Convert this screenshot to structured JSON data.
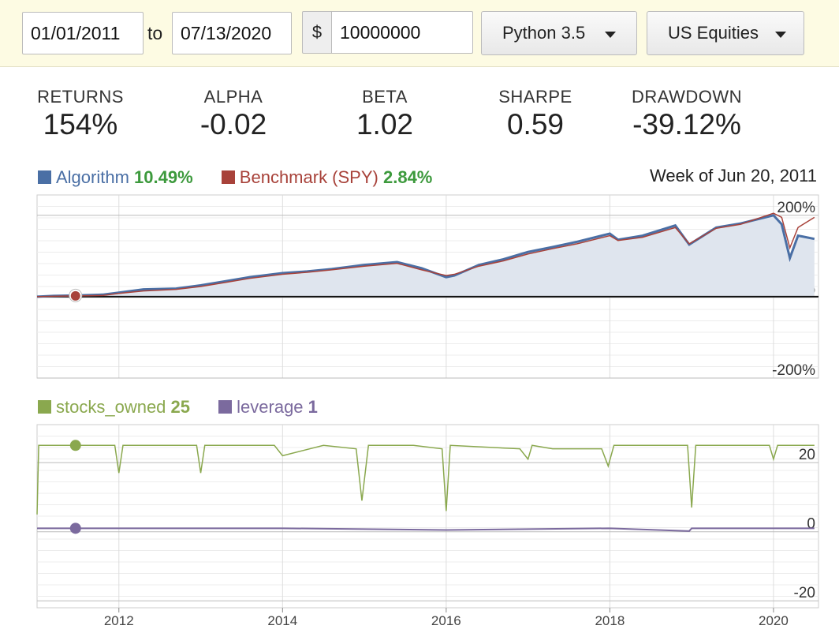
{
  "controls": {
    "start_date": "01/01/2011",
    "to_label": "to",
    "end_date": "07/13/2020",
    "currency_symbol": "$",
    "capital": "10000000",
    "language": "Python 3.5",
    "universe": "US Equities"
  },
  "stats": [
    {
      "label": "RETURNS",
      "value": "154%"
    },
    {
      "label": "ALPHA",
      "value": "-0.02"
    },
    {
      "label": "BETA",
      "value": "1.02"
    },
    {
      "label": "SHARPE",
      "value": "0.59"
    },
    {
      "label": "DRAWDOWN",
      "value": "-39.12%"
    }
  ],
  "returns_legend": {
    "algorithm_label": "Algorithm",
    "algorithm_value": "10.49%",
    "benchmark_label": "Benchmark (SPY)",
    "benchmark_value": "2.84%",
    "hover_date": "Week of Jun 20, 2011"
  },
  "colors": {
    "algorithm": "#4a6fa5",
    "benchmark": "#a8423a",
    "stocks_owned": "#8aa84e",
    "leverage": "#7b6a9e",
    "value_green": "#3d9a3d"
  },
  "custom_legend": {
    "stocks_label": "stocks_owned",
    "stocks_value": "25",
    "leverage_label": "leverage",
    "leverage_value": "1"
  },
  "chart_data": [
    {
      "type": "area",
      "ylim": [
        -200,
        250
      ],
      "y_tick_labels": [
        "200%",
        "0%",
        "-200%"
      ],
      "y_ticks": [
        200,
        0,
        -200
      ],
      "series": [
        {
          "name": "Algorithm",
          "x": [
            2011.0,
            2011.2,
            2011.47,
            2011.8,
            2012.0,
            2012.3,
            2012.7,
            2013.0,
            2013.3,
            2013.6,
            2014.0,
            2014.3,
            2014.6,
            2015.0,
            2015.4,
            2015.7,
            2016.0,
            2016.1,
            2016.4,
            2016.7,
            2017.0,
            2017.3,
            2017.6,
            2018.0,
            2018.1,
            2018.4,
            2018.8,
            2018.97,
            2019.3,
            2019.6,
            2020.0,
            2020.1,
            2020.2,
            2020.3,
            2020.5
          ],
          "values": [
            0,
            2,
            3,
            5,
            10,
            18,
            20,
            28,
            38,
            48,
            58,
            62,
            68,
            78,
            85,
            70,
            48,
            52,
            78,
            92,
            110,
            122,
            135,
            155,
            140,
            150,
            175,
            128,
            170,
            180,
            200,
            178,
            95,
            150,
            142
          ]
        },
        {
          "name": "Benchmark (SPY)",
          "x": [
            2011.0,
            2011.2,
            2011.47,
            2011.8,
            2012.0,
            2012.3,
            2012.7,
            2013.0,
            2013.3,
            2013.6,
            2014.0,
            2014.3,
            2014.6,
            2015.0,
            2015.4,
            2015.7,
            2016.0,
            2016.1,
            2016.4,
            2016.7,
            2017.0,
            2017.3,
            2017.6,
            2018.0,
            2018.1,
            2018.4,
            2018.8,
            2018.97,
            2019.3,
            2019.6,
            2020.0,
            2020.1,
            2020.2,
            2020.3,
            2020.5
          ],
          "values": [
            0,
            1,
            2,
            3,
            8,
            14,
            18,
            25,
            35,
            45,
            55,
            60,
            66,
            75,
            82,
            66,
            52,
            55,
            75,
            88,
            105,
            118,
            130,
            150,
            138,
            146,
            170,
            130,
            168,
            178,
            205,
            195,
            120,
            170,
            195
          ]
        }
      ]
    },
    {
      "type": "line",
      "ylim": [
        -22,
        31
      ],
      "y_tick_labels": [
        "20",
        "0",
        "-20"
      ],
      "y_ticks": [
        20,
        0,
        -20
      ],
      "x_tick_labels": [
        "2012",
        "2014",
        "2016",
        "2018",
        "2020"
      ],
      "x_ticks": [
        2012,
        2014,
        2016,
        2018,
        2020
      ],
      "xlim": [
        2011.0,
        2020.55
      ],
      "series": [
        {
          "name": "stocks_owned",
          "x": [
            2011.0,
            2011.02,
            2011.45,
            2011.95,
            2012.0,
            2012.05,
            2012.5,
            2012.95,
            2013.0,
            2013.05,
            2013.9,
            2014.0,
            2014.5,
            2014.9,
            2014.97,
            2015.05,
            2015.6,
            2015.95,
            2016.0,
            2016.05,
            2016.9,
            2017.0,
            2017.05,
            2017.3,
            2017.9,
            2017.98,
            2018.05,
            2018.95,
            2019.0,
            2019.05,
            2019.95,
            2020.0,
            2020.05,
            2020.5
          ],
          "values": [
            5,
            25,
            25,
            25,
            17,
            25,
            25,
            25,
            17,
            25,
            25,
            22,
            25,
            24,
            9,
            25,
            25,
            24,
            6,
            25,
            24,
            21,
            25,
            24,
            24,
            19,
            25,
            25,
            7,
            25,
            25,
            21,
            25,
            25
          ]
        },
        {
          "name": "leverage",
          "x": [
            2011.0,
            2011.45,
            2012.0,
            2014.0,
            2016.0,
            2018.0,
            2018.97,
            2019.0,
            2020.0,
            2020.5
          ],
          "values": [
            1,
            1,
            1,
            1,
            0.5,
            1,
            0.2,
            1,
            1,
            1
          ]
        }
      ]
    }
  ]
}
